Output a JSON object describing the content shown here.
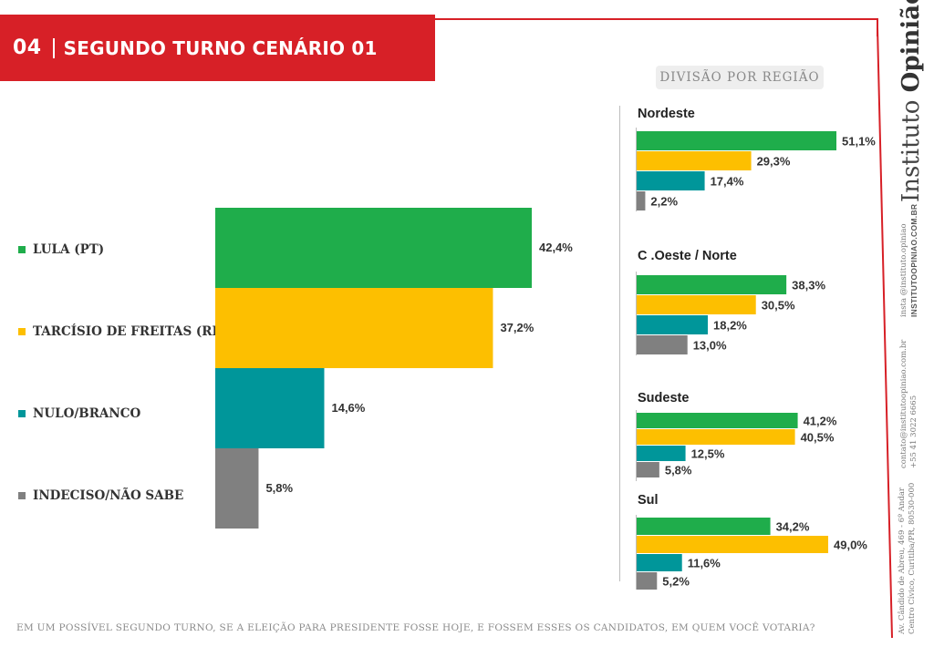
{
  "header": {
    "number": "04",
    "title": "SEGUNDO TURNO CENÁRIO 01"
  },
  "region_tag": "DIVISÃO POR REGIÃO",
  "brand": {
    "part1": "Instituto ",
    "part2": "Opinião"
  },
  "side_info": {
    "insta": "insta @instituto.opiniao",
    "site": "INSTITUTOOPINIAO.COM.BR",
    "email": "contato@institutoopiniao.com.br",
    "phone": "+55 41 3022 6665",
    "address1": "Av. Cândido de Abreu, 469 - 6º Andar",
    "address2": "Centro Cívico, Curitiba/PR, 80530-000"
  },
  "footer": "EM UM POSSÍVEL SEGUNDO TURNO, SE A ELEIÇÃO PARA PRESIDENTE FOSSE HOJE, E FOSSEM ESSES OS CANDIDATOS, EM QUEM VOCÊ VOTARIA?",
  "colors": {
    "lula": "#1fad4b",
    "tarcisio": "#fdbf00",
    "nulo": "#00969a",
    "indeciso": "#808080",
    "accent": "#d72027"
  },
  "chart_data": [
    {
      "type": "bar",
      "orientation": "horizontal",
      "categories": [
        "LULA (PT)",
        "TARCÍSIO DE FREITAS (REP)",
        "NULO/BRANCO",
        "INDECISO/NÃO SABE"
      ],
      "values": [
        42.4,
        37.2,
        14.6,
        5.8
      ],
      "labels": [
        "42,4%",
        "37,2%",
        "14,6%",
        "5,8%"
      ],
      "colors": [
        "#1fad4b",
        "#fdbf00",
        "#00969a",
        "#808080"
      ],
      "xlim": [
        0,
        50
      ]
    },
    {
      "type": "bar",
      "orientation": "horizontal",
      "title": "Nordeste",
      "values": [
        51.1,
        29.3,
        17.4,
        2.2
      ],
      "labels": [
        "51,1%",
        "29,3%",
        "17,4%",
        "2,2%"
      ],
      "xlim": [
        0,
        60
      ]
    },
    {
      "type": "bar",
      "orientation": "horizontal",
      "title": "C .Oeste / Norte",
      "values": [
        38.3,
        30.5,
        18.2,
        13.0
      ],
      "labels": [
        "38,3%",
        "30,5%",
        "18,2%",
        "13,0%"
      ],
      "xlim": [
        0,
        60
      ]
    },
    {
      "type": "bar",
      "orientation": "horizontal",
      "title": "Sudeste",
      "values": [
        41.2,
        40.5,
        12.5,
        5.8
      ],
      "labels": [
        "41,2%",
        "40,5%",
        "12,5%",
        "5,8%"
      ],
      "xlim": [
        0,
        60
      ]
    },
    {
      "type": "bar",
      "orientation": "horizontal",
      "title": "Sul",
      "values": [
        34.2,
        49.0,
        11.6,
        5.2
      ],
      "labels": [
        "34,2%",
        "49,0%",
        "11,6%",
        "5,2%"
      ],
      "xlim": [
        0,
        60
      ]
    }
  ]
}
